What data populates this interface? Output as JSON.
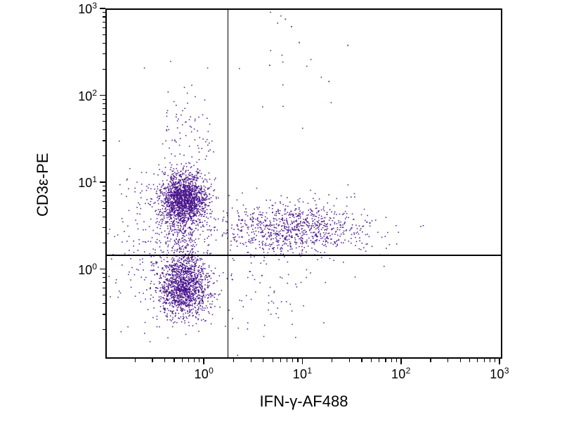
{
  "chart_data": {
    "type": "scatter",
    "title": "",
    "xlabel": "IFN-γ-AF488",
    "ylabel": "CD3ε-PE",
    "x_scale": "log",
    "y_scale": "log",
    "xlim": [
      0.1,
      1000
    ],
    "ylim": [
      0.1,
      1000
    ],
    "x_ticks": [
      1,
      10,
      100,
      1000
    ],
    "y_ticks": [
      1,
      10,
      100,
      1000
    ],
    "grid": false,
    "legend": "none",
    "point_color": "#45108a",
    "axis_color": "#000000",
    "quadrant_gate": {
      "x": 1.7,
      "y": 1.5
    },
    "seed": 42,
    "populations": [
      {
        "name": "CD3-positive IFN-gamma-negative",
        "count": 1600,
        "center": [
          0.6,
          6.5
        ],
        "sigma_log": [
          0.12,
          0.15
        ]
      },
      {
        "name": "CD3-negative IFN-gamma-negative",
        "count": 1300,
        "center": [
          0.6,
          0.64
        ],
        "sigma_log": [
          0.13,
          0.17
        ]
      },
      {
        "name": "CD3-positive IFN-gamma-positive",
        "count": 900,
        "center": [
          8.0,
          3.05
        ],
        "sigma_log": [
          0.38,
          0.15
        ]
      },
      {
        "name": "bridge-between-left-clusters",
        "count": 250,
        "center": [
          0.6,
          1.8
        ],
        "sigma_log": [
          0.12,
          0.22
        ]
      },
      {
        "name": "trail-above-upper-left-cluster",
        "count": 120,
        "center": [
          0.65,
          30
        ],
        "sigma_log": [
          0.15,
          0.35
        ]
      },
      {
        "name": "left-background-scatter",
        "count": 220,
        "center": [
          0.28,
          1.8
        ],
        "sigma_log": [
          0.22,
          0.5
        ]
      },
      {
        "name": "lower-right-sparse",
        "count": 90,
        "center": [
          3.5,
          0.7
        ],
        "sigma_log": [
          0.35,
          0.3
        ]
      },
      {
        "name": "upper-right-sparse",
        "count": 15,
        "center": [
          7,
          250
        ],
        "sigma_log": [
          0.25,
          0.3
        ]
      }
    ],
    "outlier_points": [
      [
        6.5,
        780
      ],
      [
        7.5,
        640
      ],
      [
        9,
        420
      ],
      [
        28,
        390
      ],
      [
        4.5,
        230
      ],
      [
        18,
        150
      ]
    ]
  }
}
